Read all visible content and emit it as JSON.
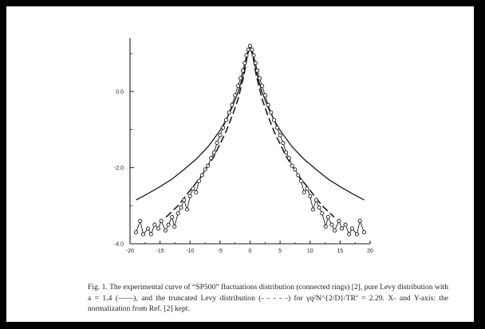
{
  "caption": {
    "label": "Fig. 1.",
    "text": "The experimental curve of “SP500” fluctuations distribution (connected rings) [2], pure Levy distribution with a = 1.4 (——), and the truncated Levy distribution (- - - - -) for γq²N^{2/D}/TRª = 2.29. X- and Y-axis: the normalization from Ref. [2] kept."
  },
  "chart_data": {
    "type": "scatter",
    "title": "",
    "xlabel": "",
    "ylabel": "",
    "xlim": [
      -20,
      20
    ],
    "ylim": [
      -4.0,
      1.4
    ],
    "x_ticks": [
      "-20",
      "-15",
      "-10",
      "-5",
      "0",
      "5",
      "10",
      "15",
      "20"
    ],
    "y_ticks": [
      "0.0",
      "-2.0",
      "-4.0"
    ],
    "grid": false,
    "series": [
      {
        "style": "solid",
        "x": [
          -19,
          -17,
          -15,
          -13,
          -11,
          -9,
          -7,
          -5,
          -4,
          -3,
          -2,
          -1.5,
          -1,
          -0.6,
          -0.3,
          0,
          0.3,
          0.6,
          1,
          1.5,
          2,
          3,
          4,
          5,
          7,
          9,
          11,
          13,
          15,
          17,
          19
        ],
        "y": [
          -2.85,
          -2.68,
          -2.5,
          -2.3,
          -2.05,
          -1.78,
          -1.45,
          -1.02,
          -0.75,
          -0.42,
          -0.02,
          0.25,
          0.55,
          0.85,
          1.1,
          1.2,
          1.1,
          0.85,
          0.55,
          0.25,
          -0.02,
          -0.42,
          -0.75,
          -1.02,
          -1.45,
          -1.78,
          -2.05,
          -2.3,
          -2.5,
          -2.68,
          -2.85
        ]
      },
      {
        "style": "dashed",
        "x": [
          -14,
          -12,
          -10,
          -8,
          -6,
          -4,
          -3,
          -2,
          -1,
          -0.5,
          0,
          0.5,
          1,
          2,
          3,
          4,
          6,
          8,
          10,
          12,
          14
        ],
        "y": [
          -3.3,
          -3.0,
          -2.6,
          -2.2,
          -1.7,
          -1.05,
          -0.65,
          -0.2,
          0.45,
          0.9,
          1.2,
          0.9,
          0.45,
          -0.2,
          -0.65,
          -1.05,
          -1.7,
          -2.2,
          -2.6,
          -3.0,
          -3.3
        ]
      },
      {
        "style": "rings",
        "x": [
          -19.0,
          -18.3,
          -17.8,
          -17.0,
          -16.5,
          -15.9,
          -15.3,
          -14.8,
          -14.1,
          -13.6,
          -13.0,
          -12.6,
          -12.0,
          -11.5,
          -11.0,
          -10.5,
          -10.0,
          -9.5,
          -9.0,
          -8.5,
          -8.0,
          -7.5,
          -7.0,
          -6.5,
          -6.0,
          -5.5,
          -5.0,
          -4.5,
          -4.0,
          -3.5,
          -3.0,
          -2.5,
          -2.0,
          -1.6,
          -1.2,
          -0.9,
          -0.6,
          -0.3,
          0.0,
          0.3,
          0.6,
          0.9,
          1.2,
          1.6,
          2.0,
          2.5,
          3.0,
          3.5,
          4.0,
          4.5,
          5.0,
          5.5,
          6.0,
          6.5,
          7.0,
          7.5,
          8.0,
          8.5,
          9.0,
          9.5,
          10.0,
          10.5,
          11.0,
          11.5,
          12.0,
          12.6,
          13.0,
          13.6,
          14.1,
          14.8,
          15.3,
          15.9,
          16.5,
          17.0,
          17.8,
          18.3,
          19.0
        ],
        "y": [
          -3.7,
          -3.4,
          -3.75,
          -3.6,
          -3.75,
          -3.5,
          -3.6,
          -3.4,
          -3.65,
          -3.5,
          -3.3,
          -3.55,
          -3.2,
          -3.05,
          -2.85,
          -3.1,
          -2.75,
          -2.55,
          -2.65,
          -2.35,
          -2.2,
          -2.05,
          -1.95,
          -1.75,
          -1.6,
          -1.35,
          -1.15,
          -0.95,
          -0.75,
          -0.55,
          -0.35,
          -0.1,
          0.15,
          0.35,
          0.55,
          0.75,
          0.95,
          1.1,
          1.2,
          1.1,
          0.95,
          0.75,
          0.55,
          0.35,
          0.15,
          -0.1,
          -0.35,
          -0.55,
          -0.75,
          -0.95,
          -1.15,
          -1.35,
          -1.6,
          -1.75,
          -1.95,
          -2.05,
          -2.2,
          -2.35,
          -2.65,
          -2.55,
          -2.75,
          -3.1,
          -2.85,
          -3.05,
          -3.2,
          -3.55,
          -3.3,
          -3.5,
          -3.65,
          -3.4,
          -3.6,
          -3.5,
          -3.75,
          -3.6,
          -3.75,
          -3.4,
          -3.7
        ]
      }
    ]
  }
}
